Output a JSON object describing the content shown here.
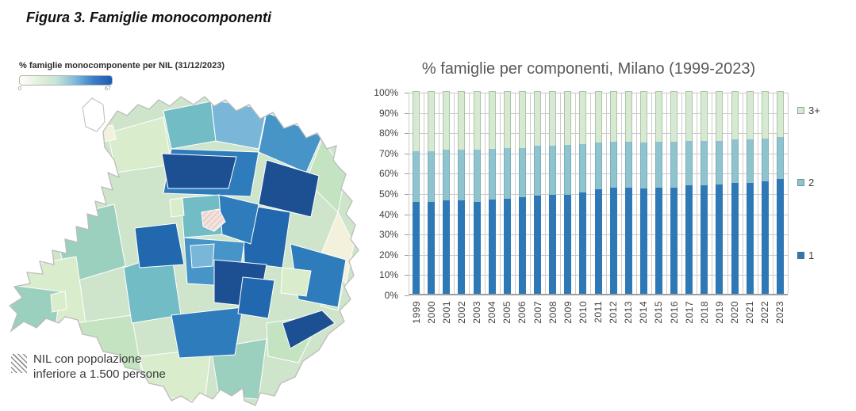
{
  "page": {
    "title": "Figura 3. Famiglie monocomponenti"
  },
  "map_panel": {
    "legend_title": "% famiglie monocomponente per NIL (31/12/2023)",
    "legend_min": "0",
    "legend_max": "67",
    "note_line1": "NIL con popolazione",
    "note_line2": "inferiore a 1.500 persone",
    "gradient_stops": [
      "#ffffff",
      "#e4f0da",
      "#c6e4d6",
      "#7fb9dd",
      "#3a7ec6",
      "#1d5cb0"
    ],
    "palette": {
      "base": "#cfe5cb",
      "navy": "#1d4f93",
      "blue_dark": "#2268ae",
      "blue": "#2f7cbc",
      "blue_med": "#4694c8",
      "blue_light": "#79b6d8",
      "teal": "#72bcc6",
      "teal_green": "#9bcfbe",
      "green_light": "#c4e3c1",
      "green_pale": "#d9edcc",
      "cream": "#f3f1dc",
      "pink": "#f6e2dc",
      "outline": "#bcbcbc"
    }
  },
  "chart_data": {
    "type": "bar",
    "stacked": true,
    "title": "% famiglie per componenti, Milano (1999-2023)",
    "categories": [
      "1999",
      "2000",
      "2001",
      "2002",
      "2003",
      "2004",
      "2005",
      "2006",
      "2007",
      "2008",
      "2009",
      "2010",
      "2011",
      "2012",
      "2013",
      "2014",
      "2015",
      "2016",
      "2017",
      "2018",
      "2019",
      "2020",
      "2021",
      "2022",
      "2023"
    ],
    "series": [
      {
        "name": "1",
        "color": "#2e78b6",
        "values": [
          45.5,
          45.5,
          46,
          46,
          45.5,
          46.5,
          47,
          47.5,
          48.5,
          49,
          49,
          50,
          51.5,
          52.5,
          52.5,
          52,
          52.5,
          52.5,
          53.5,
          53.5,
          54,
          54.5,
          54.5,
          55.5,
          56.5
        ]
      },
      {
        "name": "2",
        "color": "#8fc3ce",
        "values": [
          25,
          25,
          25,
          25,
          25.5,
          25,
          25,
          24.5,
          24.5,
          24,
          24.5,
          24,
          23,
          22.5,
          22.5,
          22.5,
          22.5,
          22.5,
          22,
          22,
          21.5,
          21.5,
          21.5,
          21,
          21
        ]
      },
      {
        "name": "3+",
        "color": "#d7e9d2",
        "values": [
          29.5,
          29.5,
          29,
          29,
          29,
          28.5,
          28,
          28,
          27,
          27,
          26.5,
          26,
          25.5,
          25,
          25,
          25.5,
          25,
          25,
          24.5,
          24.5,
          24.5,
          24,
          24,
          23.5,
          22.5
        ]
      }
    ],
    "y_ticks": [
      "100%",
      "90%",
      "80%",
      "70%",
      "60%",
      "50%",
      "40%",
      "30%",
      "20%",
      "10%",
      "0%"
    ],
    "ylim": [
      0,
      100
    ],
    "grid": true,
    "legend_position": "right",
    "legend_order_top_to_bottom": [
      "3+",
      "2",
      "1"
    ]
  }
}
